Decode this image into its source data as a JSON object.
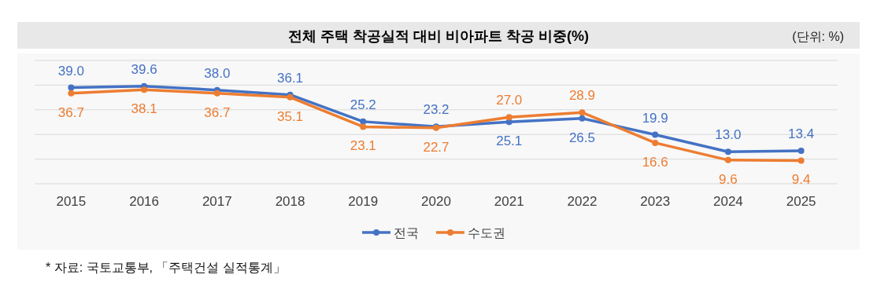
{
  "chart_data": {
    "type": "line",
    "title": "전체 주택 착공실적 대비 비아파트 착공 비중(%)",
    "categories": [
      "2015",
      "2016",
      "2017",
      "2018",
      "2019",
      "2020",
      "2021",
      "2022",
      "2023",
      "2024",
      "2025"
    ],
    "series": [
      {
        "name": "전국",
        "color": "#4472c4",
        "values": [
          39.0,
          39.6,
          38.0,
          36.1,
          25.2,
          23.2,
          25.1,
          26.5,
          19.9,
          13.0,
          13.4
        ],
        "value_labels": [
          "39.0",
          "39.6",
          "38.0",
          "36.1",
          "25.2",
          "23.2",
          "25.1",
          "26.5",
          "19.9",
          "13.0",
          "13.4"
        ]
      },
      {
        "name": "수도권",
        "color": "#ed7d31",
        "values": [
          36.7,
          38.1,
          36.7,
          35.1,
          23.1,
          22.7,
          27.0,
          28.9,
          16.6,
          9.6,
          9.4
        ],
        "value_labels": [
          "36.7",
          "38.1",
          "36.7",
          "35.1",
          "23.1",
          "22.7",
          "27.0",
          "28.9",
          "16.6",
          "9.6",
          "9.4"
        ]
      }
    ],
    "ylim": [
      0,
      50
    ],
    "yticks": [
      {
        "value": 0,
        "label": null
      },
      {
        "value": 10,
        "label": null
      },
      {
        "value": 20,
        "label": null
      },
      {
        "value": 30,
        "label": null
      },
      {
        "value": 40,
        "label": null
      },
      {
        "value": 50,
        "label": null
      }
    ],
    "tick_labels": "x",
    "grid": "y",
    "legend": "bottom",
    "marker": "circle",
    "line_style": "solid",
    "annotations": [
      "(단위: %)",
      "* 자료: 국토교통부, 「주택건설 실적통계」"
    ]
  }
}
